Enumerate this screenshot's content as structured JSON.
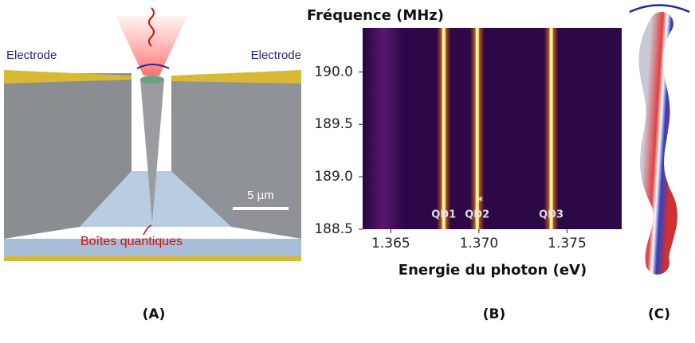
{
  "panel_a": {
    "label": "(A)",
    "electrode_left": "Electrode",
    "electrode_right": "Electrode",
    "scale_bar": "5 µm",
    "annotation": "Boîtes quantiques"
  },
  "panel_b": {
    "label": "(B)",
    "type": "heatmap",
    "title": "Fréquence (MHz)",
    "xlabel": "Energie du photon (eV)",
    "xlim": [
      1.3634,
      1.3781
    ],
    "ylim": [
      188.5,
      190.42
    ],
    "xticks": [
      1.365,
      {
        "value": 1.37,
        "label": "1.370"
      },
      1.375
    ],
    "yticks": [
      {
        "value": 190,
        "label": "190.0"
      },
      189.5,
      {
        "value": 189,
        "label": "189.0"
      },
      188.5
    ],
    "emission_lines": [
      {
        "name": "QD1",
        "energy": 1.368
      },
      {
        "name": "QD2",
        "energy": 1.3699
      },
      {
        "name": "QD3",
        "energy": 1.3741
      }
    ],
    "marker": "*"
  },
  "panel_c": {
    "label": "(C)"
  }
}
